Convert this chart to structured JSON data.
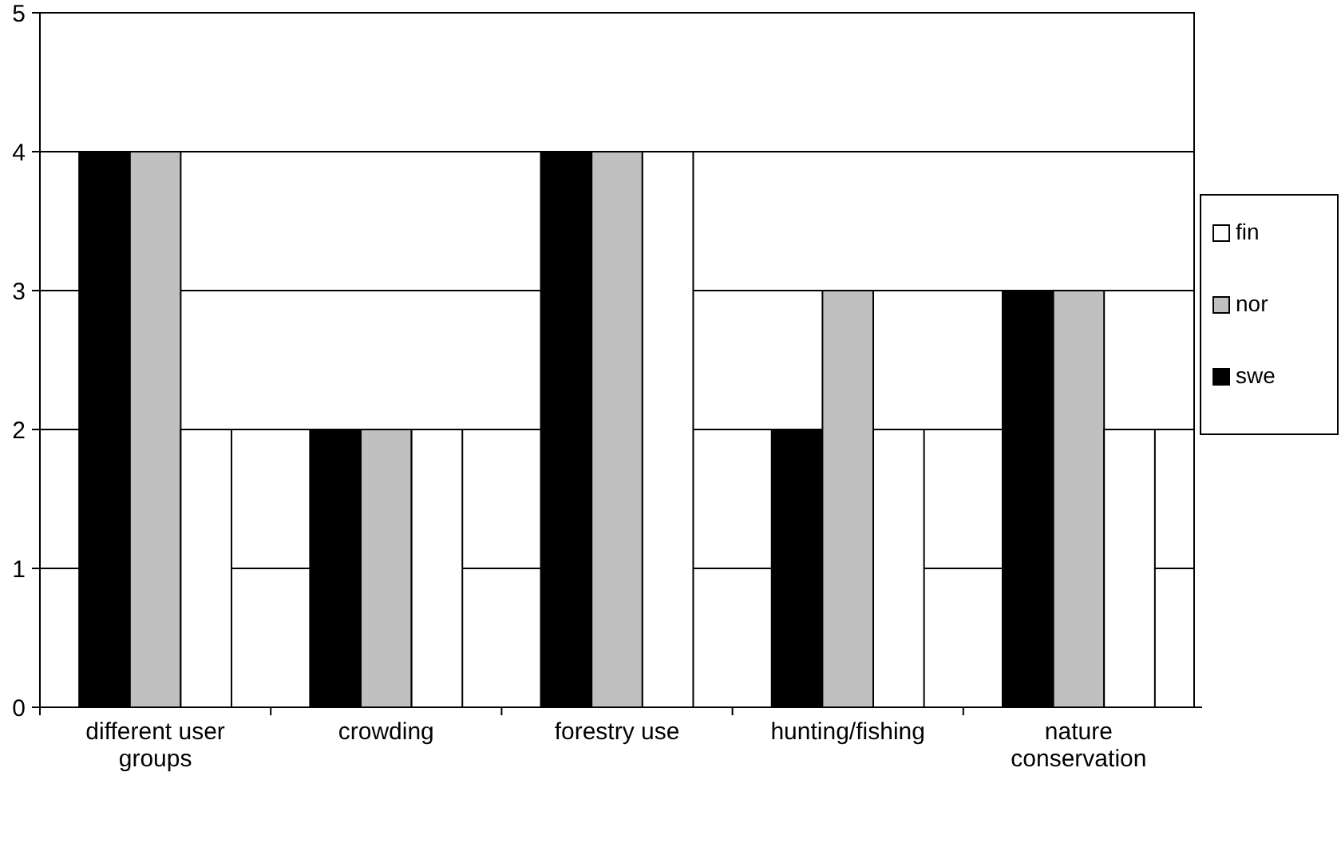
{
  "chart_data": {
    "type": "bar",
    "categories": [
      "different user groups",
      "crowding",
      "forestry use",
      "hunting/fishing",
      "nature conservation"
    ],
    "series": [
      {
        "name": "swe",
        "color": "#000000",
        "values": [
          4,
          2,
          4,
          2,
          3
        ]
      },
      {
        "name": "nor",
        "color": "#c0c0c0",
        "values": [
          4,
          2,
          4,
          3,
          3
        ]
      },
      {
        "name": "fin",
        "color": "#ffffff",
        "values": [
          2,
          2,
          4,
          2,
          2
        ]
      }
    ],
    "ylim": [
      0,
      5
    ],
    "yticks": [
      0,
      1,
      2,
      3,
      4,
      5
    ],
    "grid": "y",
    "legend": "right"
  }
}
